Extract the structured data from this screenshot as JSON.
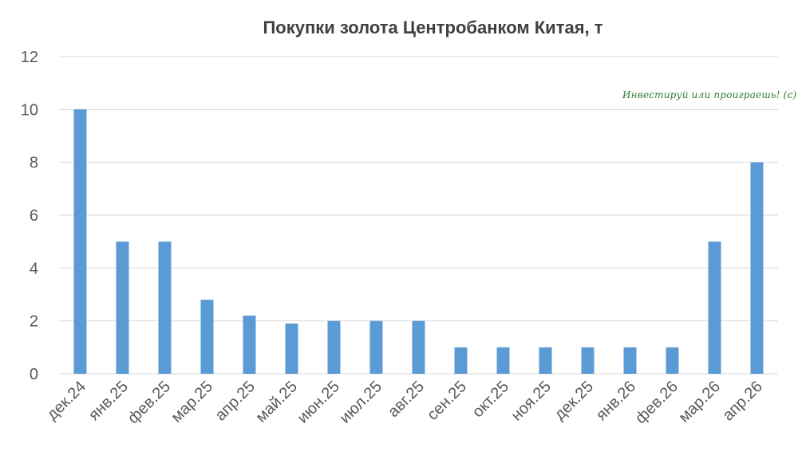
{
  "chart_data": {
    "type": "bar",
    "title": "Покупки золота Центробанком Китая, т",
    "xlabel": "",
    "ylabel": "",
    "ylim": [
      0,
      12
    ],
    "yticks": [
      0,
      2,
      4,
      6,
      8,
      10,
      12
    ],
    "grid": true,
    "categories": [
      "дек.24",
      "янв.25",
      "фев.25",
      "мар.25",
      "апр.25",
      "май.25",
      "июн.25",
      "июл.25",
      "авг.25",
      "сен.25",
      "окт.25",
      "ноя.25",
      "дек.25",
      "янв.26",
      "фев.26",
      "мар.26",
      "апр.26"
    ],
    "values": [
      10,
      5,
      5,
      2.8,
      2.2,
      1.9,
      2,
      2,
      2,
      1,
      1,
      1,
      1,
      1,
      1,
      5,
      8
    ],
    "colors": {
      "bar": "#5b9bd5",
      "grid": "#d9d9d9",
      "text": "#595959",
      "title": "#404040"
    }
  },
  "watermark": "Инвестируй или проиграешь! (с)"
}
